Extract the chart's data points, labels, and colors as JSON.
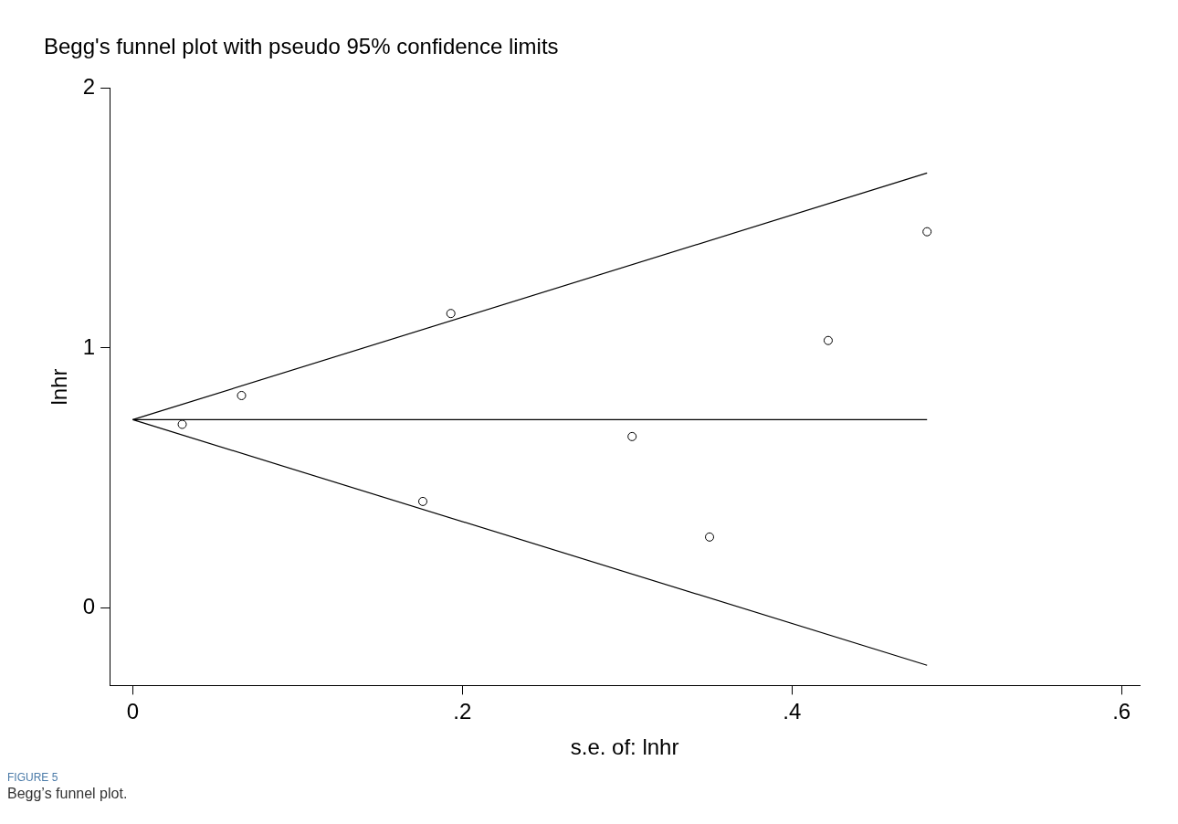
{
  "chart_data": {
    "type": "scatter",
    "title": "Begg's funnel plot with pseudo 95% confidence limits",
    "xlabel": "s.e. of: lnhr",
    "ylabel": "lnhr",
    "xlim": [
      -0.014,
      0.611
    ],
    "xticks": [
      0,
      {
        "value": 0.2,
        "label": ".2"
      },
      {
        "value": 0.4,
        "label": ".4"
      },
      {
        "value": 0.6,
        "label": ".6"
      }
    ],
    "ylim": [
      -0.3,
      2
    ],
    "yticks": [
      0,
      1,
      2
    ],
    "grid": false,
    "legend": false,
    "series": [
      {
        "marker": "circle",
        "color": "#000000",
        "x": [
          0.03,
          0.066,
          0.176,
          0.193,
          0.303,
          0.35,
          0.422,
          0.482
        ],
        "values": [
          0.706,
          0.817,
          0.409,
          1.133,
          0.659,
          0.272,
          1.029,
          1.448
        ]
      },
      {
        "type": "line",
        "marker": "none",
        "color": "#000000",
        "x": [
          0,
          0.482
        ],
        "values": [
          0.724,
          1.674
        ]
      },
      {
        "type": "line",
        "marker": "none",
        "color": "#000000",
        "x": [
          0,
          0.482
        ],
        "values": [
          0.724,
          0.724
        ]
      },
      {
        "type": "line",
        "marker": "none",
        "color": "#000000",
        "x": [
          0,
          0.482
        ],
        "values": [
          0.724,
          -0.222
        ]
      }
    ],
    "annotations": [
      "FIGURE 5",
      "Begg’s funnel plot."
    ]
  }
}
